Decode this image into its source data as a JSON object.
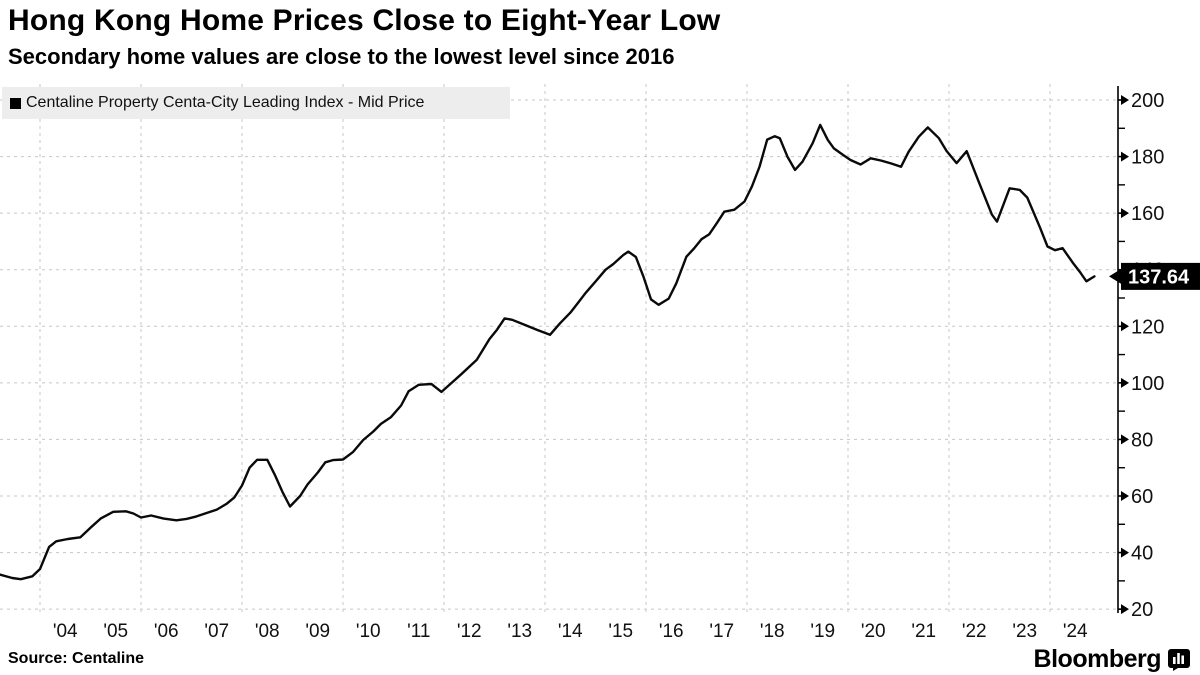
{
  "header": {
    "title": "Hong Kong Home Prices Close to Eight-Year Low",
    "subtitle": "Secondary home values are close to the lowest level since 2016"
  },
  "legend": {
    "label": "Centaline Property Centa-City Leading Index - Mid Price",
    "swatch_color": "#000000"
  },
  "source_line": "Source: Centaline",
  "branding": {
    "logo_text": "Bloomberg"
  },
  "chart_data": {
    "type": "line",
    "title": "Hong Kong Home Prices Close to Eight-Year Low",
    "subtitle": "Secondary home values are close to the lowest level since 2016",
    "xlabel": "",
    "ylabel": "",
    "xlim": [
      2003.2,
      2025.3
    ],
    "ylim": [
      20,
      200
    ],
    "grid": "dashed",
    "legend_position": "top-left",
    "axis_side": "right",
    "line_color": "#0a0a0a",
    "grid_color": "#c7c7c7",
    "x_tick_labels": [
      "'04",
      "'05",
      "'06",
      "'07",
      "'08",
      "'09",
      "'10",
      "'11",
      "'12",
      "'13",
      "'14",
      "'15",
      "'16",
      "'17",
      "'18",
      "'19",
      "'20",
      "'21",
      "'22",
      "'23",
      "'24"
    ],
    "x_tick_years": [
      2004,
      2005,
      2006,
      2007,
      2008,
      2009,
      2010,
      2011,
      2012,
      2013,
      2014,
      2015,
      2016,
      2017,
      2018,
      2019,
      2020,
      2021,
      2022,
      2023,
      2024
    ],
    "x_grid_years": [
      2004,
      2006,
      2008,
      2010,
      2012,
      2014,
      2016,
      2018,
      2020,
      2022,
      2024
    ],
    "y_major_ticks": [
      20,
      40,
      60,
      80,
      100,
      120,
      140,
      160,
      180,
      200
    ],
    "y_minor_ticks": [
      30,
      50,
      70,
      90,
      110,
      130,
      150,
      170,
      190
    ],
    "last_value": 137.64,
    "last_value_label": "137.64",
    "series": [
      {
        "name": "Centaline Property Centa-City Leading Index - Mid Price",
        "color": "#0a0a0a",
        "points": [
          [
            2003.21,
            32.2
          ],
          [
            2003.45,
            31.0
          ],
          [
            2003.62,
            30.6
          ],
          [
            2003.85,
            31.6
          ],
          [
            2004.0,
            34.2
          ],
          [
            2004.18,
            42.0
          ],
          [
            2004.32,
            44.0
          ],
          [
            2004.55,
            44.8
          ],
          [
            2004.8,
            45.4
          ],
          [
            2005.0,
            48.8
          ],
          [
            2005.2,
            52.0
          ],
          [
            2005.45,
            54.4
          ],
          [
            2005.7,
            54.6
          ],
          [
            2005.85,
            53.8
          ],
          [
            2006.0,
            52.4
          ],
          [
            2006.2,
            53.1
          ],
          [
            2006.45,
            52.0
          ],
          [
            2006.7,
            51.4
          ],
          [
            2006.9,
            51.9
          ],
          [
            2007.1,
            52.8
          ],
          [
            2007.3,
            54.0
          ],
          [
            2007.5,
            55.2
          ],
          [
            2007.7,
            57.3
          ],
          [
            2007.85,
            59.5
          ],
          [
            2008.0,
            63.7
          ],
          [
            2008.15,
            70.0
          ],
          [
            2008.3,
            72.8
          ],
          [
            2008.5,
            72.8
          ],
          [
            2008.65,
            67.5
          ],
          [
            2008.8,
            61.5
          ],
          [
            2008.95,
            56.3
          ],
          [
            2009.15,
            60.0
          ],
          [
            2009.3,
            64.1
          ],
          [
            2009.5,
            68.3
          ],
          [
            2009.65,
            71.9
          ],
          [
            2009.8,
            72.7
          ],
          [
            2010.0,
            72.9
          ],
          [
            2010.2,
            75.6
          ],
          [
            2010.4,
            79.8
          ],
          [
            2010.6,
            82.8
          ],
          [
            2010.75,
            85.5
          ],
          [
            2010.95,
            87.9
          ],
          [
            2011.15,
            92.0
          ],
          [
            2011.3,
            97.0
          ],
          [
            2011.5,
            99.3
          ],
          [
            2011.75,
            99.6
          ],
          [
            2011.95,
            96.8
          ],
          [
            2012.15,
            100.0
          ],
          [
            2012.35,
            103.2
          ],
          [
            2012.65,
            108.2
          ],
          [
            2012.9,
            115.5
          ],
          [
            2013.05,
            118.8
          ],
          [
            2013.2,
            122.8
          ],
          [
            2013.35,
            122.3
          ],
          [
            2013.6,
            120.5
          ],
          [
            2013.85,
            118.7
          ],
          [
            2014.1,
            117.0
          ],
          [
            2014.3,
            121.1
          ],
          [
            2014.5,
            124.8
          ],
          [
            2014.65,
            128.2
          ],
          [
            2014.8,
            131.7
          ],
          [
            2015.0,
            135.8
          ],
          [
            2015.2,
            140.0
          ],
          [
            2015.35,
            142.0
          ],
          [
            2015.55,
            145.2
          ],
          [
            2015.65,
            146.4
          ],
          [
            2015.8,
            144.5
          ],
          [
            2015.95,
            137.5
          ],
          [
            2016.1,
            129.5
          ],
          [
            2016.25,
            127.6
          ],
          [
            2016.45,
            129.8
          ],
          [
            2016.6,
            135.2
          ],
          [
            2016.8,
            144.6
          ],
          [
            2016.95,
            147.5
          ],
          [
            2017.1,
            150.8
          ],
          [
            2017.25,
            152.5
          ],
          [
            2017.4,
            156.4
          ],
          [
            2017.55,
            160.5
          ],
          [
            2017.75,
            161.2
          ],
          [
            2017.95,
            164.1
          ],
          [
            2018.1,
            169.5
          ],
          [
            2018.25,
            176.5
          ],
          [
            2018.4,
            186.0
          ],
          [
            2018.55,
            187.2
          ],
          [
            2018.65,
            186.5
          ],
          [
            2018.8,
            180.0
          ],
          [
            2018.95,
            175.3
          ],
          [
            2019.1,
            178.2
          ],
          [
            2019.3,
            184.7
          ],
          [
            2019.45,
            191.2
          ],
          [
            2019.6,
            185.9
          ],
          [
            2019.72,
            182.9
          ],
          [
            2019.9,
            180.6
          ],
          [
            2020.05,
            178.8
          ],
          [
            2020.25,
            177.2
          ],
          [
            2020.45,
            179.4
          ],
          [
            2020.65,
            178.6
          ],
          [
            2020.85,
            177.6
          ],
          [
            2021.05,
            176.4
          ],
          [
            2021.2,
            181.7
          ],
          [
            2021.4,
            187.0
          ],
          [
            2021.58,
            190.3
          ],
          [
            2021.8,
            186.5
          ],
          [
            2021.95,
            182.0
          ],
          [
            2022.15,
            177.7
          ],
          [
            2022.35,
            181.9
          ],
          [
            2022.6,
            170.6
          ],
          [
            2022.85,
            159.5
          ],
          [
            2022.95,
            157.0
          ],
          [
            2023.2,
            168.8
          ],
          [
            2023.4,
            168.2
          ],
          [
            2023.55,
            165.5
          ],
          [
            2023.8,
            155.0
          ],
          [
            2023.95,
            148.2
          ],
          [
            2024.1,
            146.9
          ],
          [
            2024.25,
            147.6
          ],
          [
            2024.45,
            142.5
          ],
          [
            2024.6,
            139.0
          ],
          [
            2024.72,
            135.9
          ],
          [
            2024.88,
            137.64
          ]
        ]
      }
    ]
  }
}
